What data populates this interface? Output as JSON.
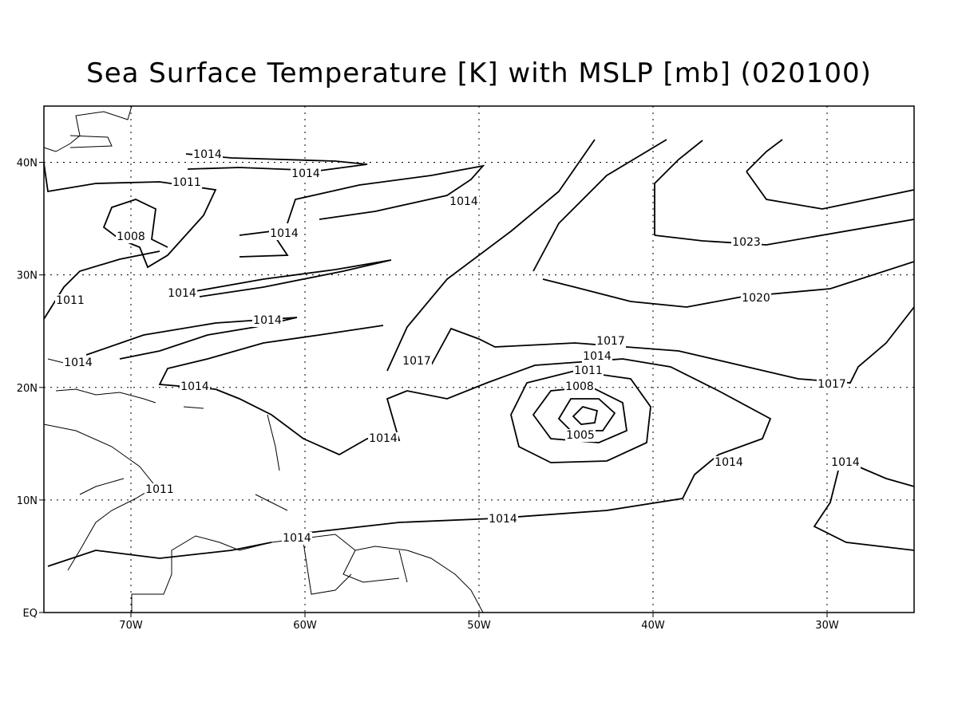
{
  "map": {
    "title": "Sea Surface Temperature [K] with MSLP [mb] (020100)",
    "xaxis": {
      "lim": [
        -75,
        -25
      ],
      "ticks": [
        {
          "value": -70,
          "label": "70W"
        },
        {
          "value": -60,
          "label": "60W"
        },
        {
          "value": -50,
          "label": "50W"
        },
        {
          "value": -40,
          "label": "40W"
        },
        {
          "value": -30,
          "label": "30W"
        }
      ]
    },
    "yaxis": {
      "lim": [
        0,
        45
      ],
      "ticks": [
        {
          "value": 0,
          "label": "EQ"
        },
        {
          "value": 10,
          "label": "10N"
        },
        {
          "value": 20,
          "label": "20N"
        },
        {
          "value": 30,
          "label": "30N"
        },
        {
          "value": 40,
          "label": "40N"
        }
      ]
    },
    "grid": true,
    "contour_labels": [
      1014,
      1014,
      1011,
      1008,
      1014,
      1014,
      1014,
      1011,
      1014,
      1014,
      1017,
      1014,
      1014,
      1011,
      1014,
      1014,
      1017,
      1014,
      1011,
      1008,
      1005,
      1023,
      1020,
      1017,
      1014,
      1014
    ]
  }
}
